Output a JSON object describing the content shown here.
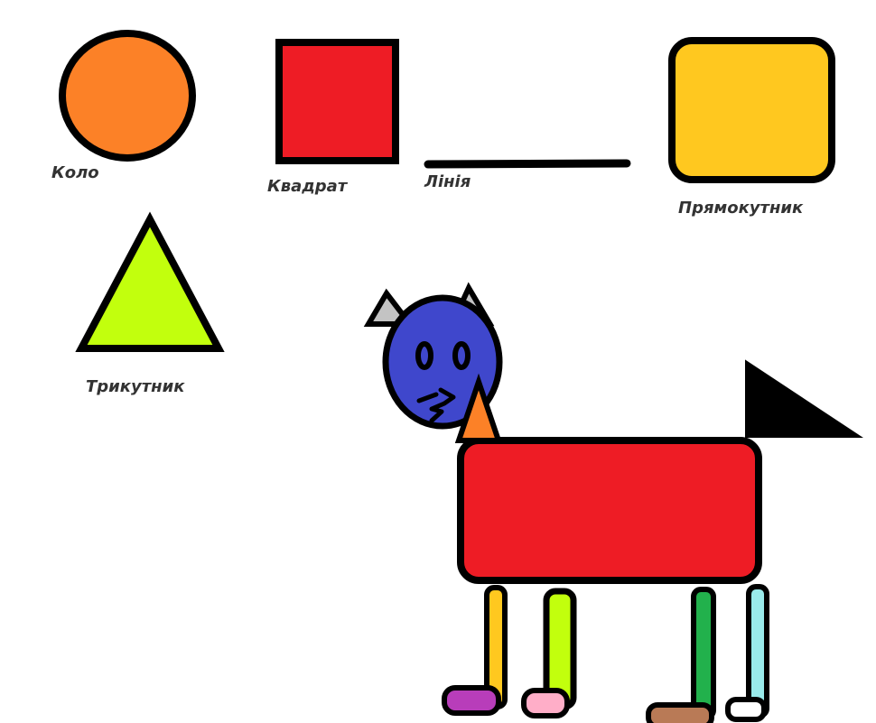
{
  "labels": {
    "circle": "Коло",
    "square": "Квадрат",
    "line": "Лінія",
    "rectangle": "Прямокутник",
    "triangle": "Трикутник"
  },
  "colors": {
    "outline": "#000000",
    "circle_fill": "#fc8127",
    "square_fill": "#ee1c25",
    "rectangle_fill": "#ffc81f",
    "triangle_fill": "#c2ff0d",
    "cat_head_fill": "#3f47cc",
    "cat_ear_fill": "#c3c3c3",
    "cat_neck_fill": "#fc8127",
    "cat_body_fill": "#ee1c25",
    "cat_tail_fill": "#000000",
    "leg_1_fill": "#ffc81f",
    "leg_2_fill": "#c2ff0d",
    "leg_3_fill": "#22b14c",
    "leg_4_fill": "#99ebeb",
    "paw_1_fill": "#b83dba",
    "paw_2_fill": "#ffaec8",
    "paw_3_fill": "#b97a56",
    "paw_4_fill": "#ffffff"
  }
}
